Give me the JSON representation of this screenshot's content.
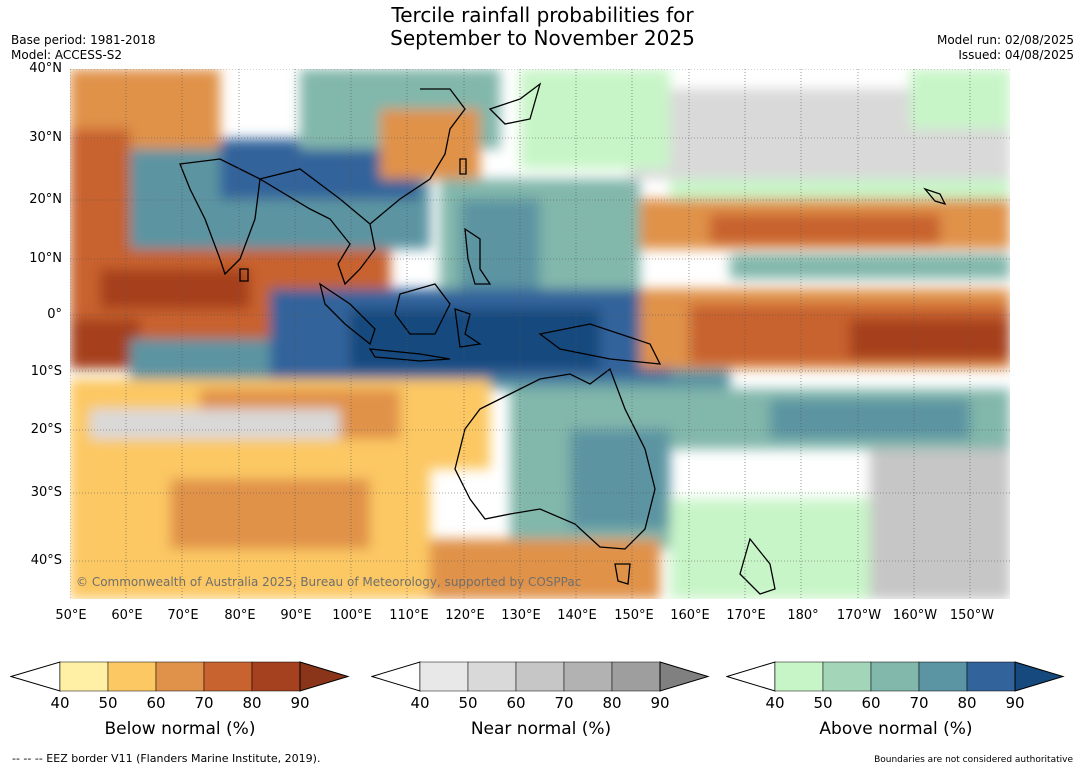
{
  "header": {
    "title_line1": "Tercile rainfall probabilities for",
    "title_line2": "September to November 2025",
    "base_period": "Base period: 1981-2018",
    "model": "Model: ACCESS-S2",
    "model_run": "Model run: 02/08/2025",
    "issued": "Issued: 04/08/2025"
  },
  "map": {
    "copyright": "© Commonwealth of Australia 2025, Bureau of Meteorology, supported by COSPPac",
    "lat_labels": [
      "40°N",
      "30°N",
      "20°N",
      "10°N",
      "0°",
      "10°S",
      "20°S",
      "30°S",
      "40°S"
    ],
    "lon_labels": [
      "50°E",
      "60°E",
      "70°E",
      "80°E",
      "90°E",
      "100°E",
      "110°E",
      "120°E",
      "130°E",
      "140°E",
      "150°E",
      "160°E",
      "170°E",
      "180°",
      "170°W",
      "160°W",
      "150°W"
    ]
  },
  "colorbars": [
    {
      "title": "Below normal (%)",
      "ticks": [
        "40",
        "50",
        "60",
        "70",
        "80",
        "90"
      ],
      "colors": [
        "#fff0a6",
        "#fcc863",
        "#e0924a",
        "#c8622f",
        "#a6411f",
        "#8a3419"
      ]
    },
    {
      "title": "Near normal (%)",
      "ticks": [
        "40",
        "50",
        "60",
        "70",
        "80",
        "90"
      ],
      "colors": [
        "#e8e8e8",
        "#d9d9d9",
        "#c6c6c6",
        "#b2b2b2",
        "#9e9e9e",
        "#808080"
      ]
    },
    {
      "title": "Above normal (%)",
      "ticks": [
        "40",
        "50",
        "60",
        "70",
        "80",
        "90"
      ],
      "colors": [
        "#c8f5c8",
        "#a3d6b8",
        "#82b7ab",
        "#5b94a2",
        "#33639b",
        "#164a7e"
      ]
    }
  ],
  "footer": {
    "eez": "--  --  -- EEZ border V11 (Flanders Marine Institute, 2019).",
    "disclaimer": "Boundaries are not considered authoritative"
  }
}
